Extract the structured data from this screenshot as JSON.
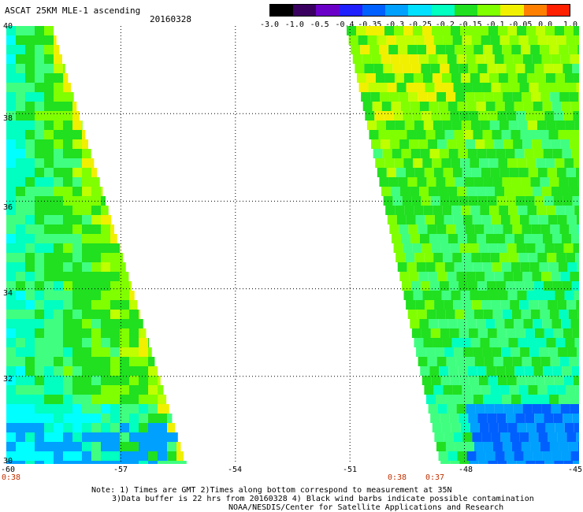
{
  "header": {
    "title": "ASCAT 25KM MLE-1 ascending",
    "date": "20160328"
  },
  "colorbar": {
    "ticks": [
      "-3.0",
      "-1.0",
      "-0.5",
      "-0.4",
      "-0.35",
      "-0.3",
      "-0.25",
      "-0.2",
      "-0.15",
      "-0.1",
      "-0.05",
      "0.0",
      "1.0"
    ],
    "colors": [
      "#000000",
      "#3a0060",
      "#6a00c8",
      "#2020ff",
      "#0060ff",
      "#00a0ff",
      "#00e0ff",
      "#00ffc0",
      "#20e020",
      "#80ff00",
      "#f0f000",
      "#ff8000",
      "#ff2000"
    ]
  },
  "map": {
    "lon_labels": [
      "-60",
      "-57",
      "-54",
      "-51",
      "-48",
      "-45"
    ],
    "lat_labels": [
      "40",
      "38",
      "36",
      "34",
      "32",
      "30"
    ],
    "lon_range": [
      -60,
      -45
    ],
    "lat_range": [
      30,
      40
    ],
    "grid_lons": [
      -57,
      -54,
      -51,
      -48
    ],
    "grid_lats": [
      32,
      34,
      36,
      38
    ]
  },
  "swath_times": {
    "left": "0:38",
    "right1": "0:38",
    "right2": "0:37"
  },
  "notes": {
    "line1": "Note: 1) Times are GMT 2)Times along bottom correspond to measurement at 35N",
    "line2": "3)Data buffer is 22 hrs from 20160328 4) Black wind barbs indicate possible contamination",
    "line3": "NOAA/NESDIS/Center for Satellite Applications and Research"
  }
}
